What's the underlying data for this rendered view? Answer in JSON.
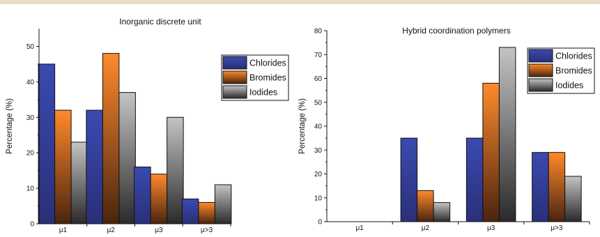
{
  "page": {
    "top_rule_color": "#e6dcc7"
  },
  "chart_data": [
    {
      "type": "bar",
      "title": "Inorganic discrete unit",
      "xlabel": "",
      "ylabel": "Percentage (%)",
      "categories": [
        "μ1",
        "μ2",
        "μ3",
        "μ>3"
      ],
      "ylim": [
        0,
        55
      ],
      "yticks": [
        0,
        10,
        20,
        30,
        40,
        50
      ],
      "series": [
        {
          "name": "Chlorides",
          "values": [
            45,
            32,
            16,
            7
          ],
          "gradient": [
            "#3a4ab0",
            "#2a2f78"
          ]
        },
        {
          "name": "Bromides",
          "values": [
            32,
            48,
            14,
            6
          ],
          "gradient": [
            "#ff8a2a",
            "#4a2410"
          ]
        },
        {
          "name": "Iodides",
          "values": [
            23,
            37,
            30,
            11
          ],
          "gradient": [
            "#c4c4c4",
            "#2a2a2a"
          ]
        }
      ],
      "legend": "top-right"
    },
    {
      "type": "bar",
      "title": "Hybrid coordination polymers",
      "xlabel": "",
      "ylabel": "Percentage (%)",
      "categories": [
        "μ1",
        "μ2",
        "μ3",
        "μ>3"
      ],
      "ylim": [
        0,
        80
      ],
      "yticks": [
        0,
        10,
        20,
        30,
        40,
        50,
        60,
        70,
        80
      ],
      "series": [
        {
          "name": "Chlorides",
          "values": [
            0,
            35,
            35,
            29
          ],
          "gradient": [
            "#3a4ab0",
            "#2a2f78"
          ]
        },
        {
          "name": "Bromides",
          "values": [
            0,
            13,
            58,
            29
          ],
          "gradient": [
            "#ff8a2a",
            "#4a2410"
          ]
        },
        {
          "name": "Iodides",
          "values": [
            0,
            8,
            73,
            19
          ],
          "gradient": [
            "#c4c4c4",
            "#2a2a2a"
          ]
        }
      ],
      "legend": "top-right"
    }
  ]
}
